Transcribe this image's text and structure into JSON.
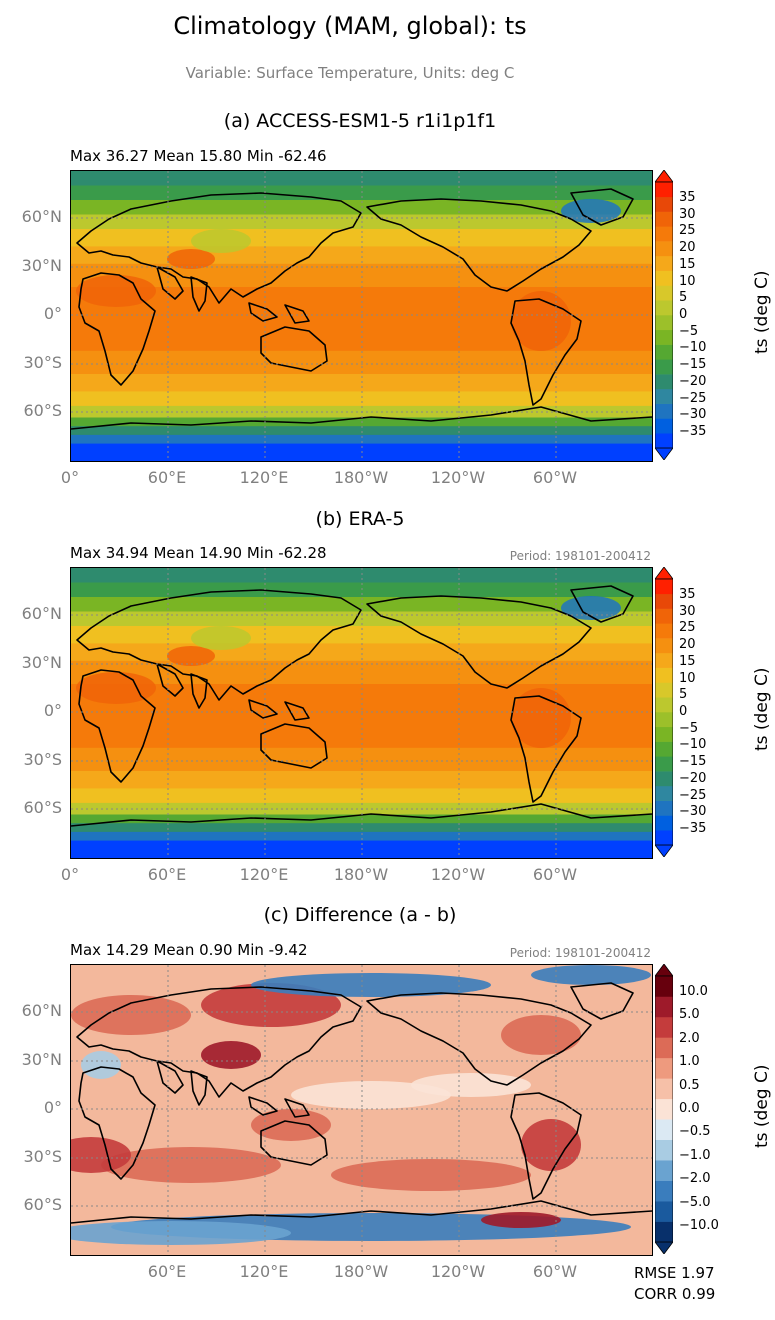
{
  "figure": {
    "title": "Climatology (MAM, global): ts",
    "subtitle": "Variable: Surface Temperature, Units: deg C"
  },
  "chart_data": [
    {
      "type": "heatmap",
      "panel_title": "(a) ACCESS-ESM1-5 r1i1p1f1",
      "stats": "Max 36.27 Mean 15.80 Min -62.46",
      "period": "",
      "xticks": [
        "0°",
        "60°E",
        "120°E",
        "180°W",
        "120°W",
        "60°W"
      ],
      "yticks": [
        "60°N",
        "30°N",
        "0°",
        "30°S",
        "60°S"
      ],
      "grid": true,
      "colorbar": {
        "label": "ts (deg C)",
        "ticks": [
          "35",
          "30",
          "25",
          "20",
          "15",
          "10",
          "5",
          "0",
          "−5",
          "−10",
          "−15",
          "−20",
          "−25",
          "−30",
          "−35"
        ],
        "colors": [
          "#0040ff",
          "#0060e0",
          "#1f74c0",
          "#2f87a0",
          "#2e8b6e",
          "#3a9b4a",
          "#55a832",
          "#7ab524",
          "#9cc02a",
          "#bcc82e",
          "#d8c82a",
          "#f0c020",
          "#f5a81a",
          "#f59010",
          "#f57a0a",
          "#f06408",
          "#e84808",
          "#ff2000"
        ]
      },
      "metrics": []
    },
    {
      "type": "heatmap",
      "panel_title": "(b) ERA-5",
      "stats": "Max 34.94 Mean 14.90 Min -62.28",
      "period": "Period: 198101-200412",
      "xticks": [
        "0°",
        "60°E",
        "120°E",
        "180°W",
        "120°W",
        "60°W"
      ],
      "yticks": [
        "60°N",
        "30°N",
        "0°",
        "30°S",
        "60°S"
      ],
      "grid": true,
      "colorbar": {
        "label": "ts (deg C)",
        "ticks": [
          "35",
          "30",
          "25",
          "20",
          "15",
          "10",
          "5",
          "0",
          "−5",
          "−10",
          "−15",
          "−20",
          "−25",
          "−30",
          "−35"
        ],
        "colors": [
          "#0040ff",
          "#0060e0",
          "#1f74c0",
          "#2f87a0",
          "#2e8b6e",
          "#3a9b4a",
          "#55a832",
          "#7ab524",
          "#9cc02a",
          "#bcc82e",
          "#d8c82a",
          "#f0c020",
          "#f5a81a",
          "#f59010",
          "#f57a0a",
          "#f06408",
          "#e84808",
          "#ff2000"
        ]
      },
      "metrics": []
    },
    {
      "type": "heatmap",
      "panel_title": "(c) Difference (a - b)",
      "stats": "Max 14.29 Mean 0.90 Min -9.42",
      "period": "Period: 198101-200412",
      "xticks": [
        "60°E",
        "120°E",
        "180°W",
        "120°W",
        "60°W"
      ],
      "yticks": [
        "60°N",
        "30°N",
        "0°",
        "30°S",
        "60°S"
      ],
      "grid": true,
      "colorbar": {
        "label": "ts (deg C)",
        "ticks": [
          "10.0",
          "5.0",
          "2.0",
          "1.0",
          "0.5",
          "0.0",
          "−0.5",
          "−1.0",
          "−2.0",
          "−5.0",
          "−10.0"
        ],
        "colors": [
          "#08306b",
          "#1a5a9e",
          "#3a7dbd",
          "#6aa3d0",
          "#a9cce3",
          "#dbe9f3",
          "#fbe3d6",
          "#f6c0a8",
          "#ee9a7e",
          "#dc6b57",
          "#c43c3c",
          "#9e1a2a",
          "#67000d"
        ]
      },
      "metrics": [
        "RMSE 1.97",
        "CORR 0.99"
      ]
    }
  ]
}
